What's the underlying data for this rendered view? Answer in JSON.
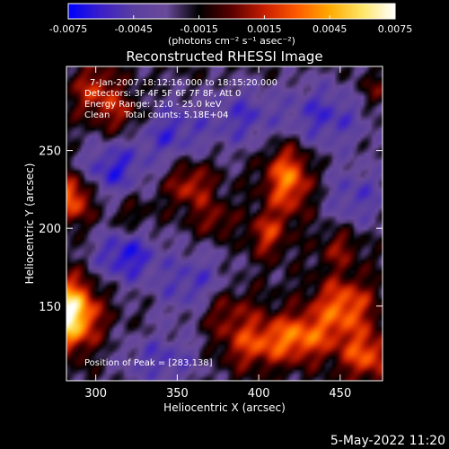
{
  "chart_data": {
    "type": "heatmap",
    "title": "Reconstructed RHESSI Image",
    "xlabel": "Heliocentric X (arcsec)",
    "ylabel": "Heliocentric Y (arcsec)",
    "xlim": [
      282,
      476
    ],
    "ylim": [
      102,
      304
    ],
    "xticks": [
      300,
      350,
      400,
      450
    ],
    "yticks": [
      150,
      200,
      250
    ],
    "colorbar": {
      "label": "(photons cm⁻² s⁻¹ asec⁻²)",
      "range": [
        -0.0075,
        0.0075
      ],
      "ticks": [
        "-0.0075",
        "-0.0045",
        "-0.0015",
        "0.0015",
        "0.0045",
        "0.0075"
      ],
      "colormap": [
        "#0000ff",
        "#3c20c8",
        "#5a3fa0",
        "#6a4a9a",
        "#000000",
        "#5a0000",
        "#c81e00",
        "#ff5a00",
        "#ffaa00",
        "#ffe666",
        "#ffffff"
      ]
    },
    "annotations": [
      "7-Jan-2007 18:12:16.000 to 18:15:20.000",
      "Detectors: 3F 4F 5F 6F 7F 8F, Att 0",
      "Energy Range: 12.0 - 25.0 keV",
      "Clean     Total counts: 5.18E+04",
      "Position of Peak = [283,138]"
    ],
    "peak": [
      283,
      138
    ],
    "sources": [
      {
        "x": 283,
        "y": 145,
        "sx": 12,
        "sy": 15,
        "a": 0.0095
      },
      {
        "x": 284,
        "y": 220,
        "sx": 9,
        "sy": 11,
        "a": 0.0055
      },
      {
        "x": 300,
        "y": 288,
        "sx": 10,
        "sy": 12,
        "a": 0.0035
      },
      {
        "x": 318,
        "y": 272,
        "sx": 10,
        "sy": 10,
        "a": 0.003
      },
      {
        "x": 358,
        "y": 228,
        "sx": 10,
        "sy": 11,
        "a": 0.0035
      },
      {
        "x": 373,
        "y": 205,
        "sx": 8,
        "sy": 8,
        "a": 0.0025
      },
      {
        "x": 418,
        "y": 232,
        "sx": 10,
        "sy": 16,
        "a": 0.0055
      },
      {
        "x": 405,
        "y": 196,
        "sx": 8,
        "sy": 10,
        "a": 0.0035
      },
      {
        "x": 378,
        "y": 148,
        "sx": 14,
        "sy": 11,
        "a": 0.003
      },
      {
        "x": 395,
        "y": 125,
        "sx": 14,
        "sy": 11,
        "a": 0.0035
      },
      {
        "x": 425,
        "y": 130,
        "sx": 15,
        "sy": 11,
        "a": 0.005
      },
      {
        "x": 452,
        "y": 150,
        "sx": 13,
        "sy": 13,
        "a": 0.005
      },
      {
        "x": 466,
        "y": 118,
        "sx": 11,
        "sy": 11,
        "a": 0.0045
      },
      {
        "x": 450,
        "y": 188,
        "sx": 9,
        "sy": 9,
        "a": 0.0025
      },
      {
        "x": 470,
        "y": 288,
        "sx": 8,
        "sy": 8,
        "a": 0.002
      },
      {
        "x": 322,
        "y": 208,
        "sx": 8,
        "sy": 8,
        "a": 0.0015
      }
    ],
    "sinks": [
      {
        "x": 310,
        "y": 238,
        "sx": 14,
        "sy": 12,
        "a": -0.004
      },
      {
        "x": 345,
        "y": 262,
        "sx": 18,
        "sy": 14,
        "a": -0.0035
      },
      {
        "x": 318,
        "y": 182,
        "sx": 14,
        "sy": 12,
        "a": -0.0045
      },
      {
        "x": 360,
        "y": 162,
        "sx": 16,
        "sy": 16,
        "a": -0.0035
      },
      {
        "x": 340,
        "y": 115,
        "sx": 18,
        "sy": 12,
        "a": -0.003
      },
      {
        "x": 440,
        "y": 272,
        "sx": 20,
        "sy": 16,
        "a": -0.0035
      },
      {
        "x": 390,
        "y": 272,
        "sx": 14,
        "sy": 14,
        "a": -0.003
      },
      {
        "x": 460,
        "y": 220,
        "sx": 14,
        "sy": 14,
        "a": -0.003
      }
    ],
    "background": -0.002
  },
  "footer": {
    "timestamp": "5-May-2022 11:20"
  }
}
